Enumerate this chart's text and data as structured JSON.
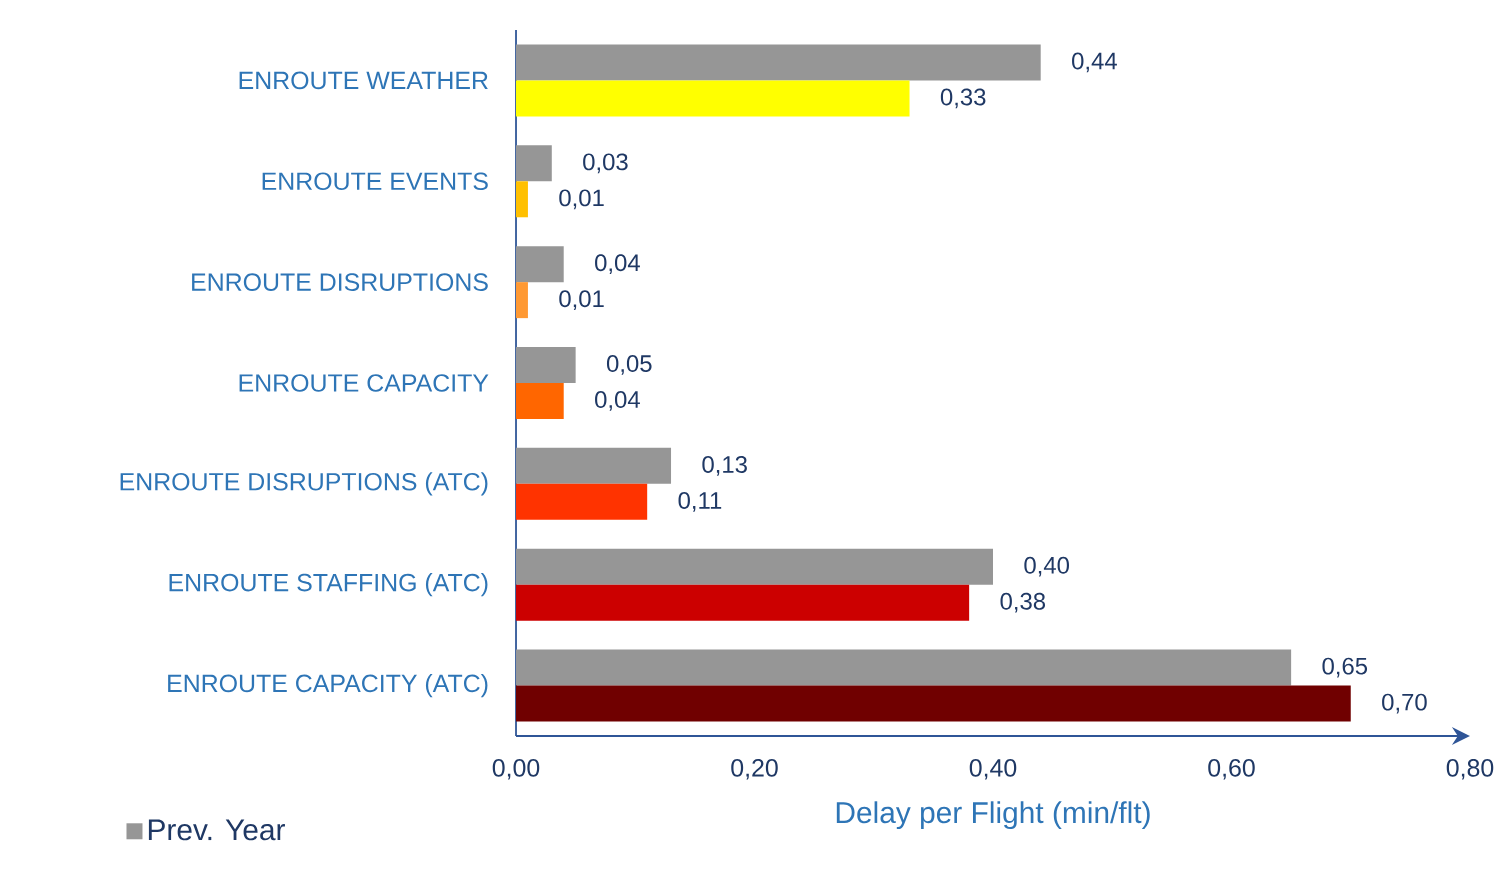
{
  "chart_data": {
    "type": "bar",
    "orientation": "horizontal",
    "categories": [
      "ENROUTE WEATHER",
      "ENROUTE EVENTS",
      "ENROUTE DISRUPTIONS",
      "ENROUTE CAPACITY",
      "ENROUTE DISRUPTIONS (ATC)",
      "ENROUTE STAFFING (ATC)",
      "ENROUTE CAPACITY (ATC)"
    ],
    "series": [
      {
        "name": "Prev. Year",
        "color": "#969696",
        "values": [
          0.44,
          0.03,
          0.04,
          0.05,
          0.13,
          0.4,
          0.65
        ],
        "value_labels": [
          "0,44",
          "0,03",
          "0,04",
          "0,05",
          "0,13",
          "0,40",
          "0,65"
        ]
      },
      {
        "colors": [
          "#ffff00",
          "#ffc000",
          "#ff9933",
          "#ff6600",
          "#ff3300",
          "#cc0000",
          "#700000"
        ],
        "values": [
          0.33,
          0.01,
          0.01,
          0.04,
          0.11,
          0.38,
          0.7
        ],
        "value_labels": [
          "0,33",
          "0,01",
          "0,01",
          "0,04",
          "0,11",
          "0,38",
          "0,70"
        ]
      }
    ],
    "xlabel": "Delay per Flight (min/flt)",
    "xlim": [
      0,
      0.8
    ],
    "xticks": [
      {
        "value": 0,
        "label": "0,00"
      },
      {
        "value": 0.2,
        "label": "0,20"
      },
      {
        "value": 0.4,
        "label": "0,40"
      },
      {
        "value": 0.6,
        "label": "0,60"
      },
      {
        "value": 0.8,
        "label": "0,80"
      }
    ],
    "legend": "bottom left",
    "grid": false
  }
}
